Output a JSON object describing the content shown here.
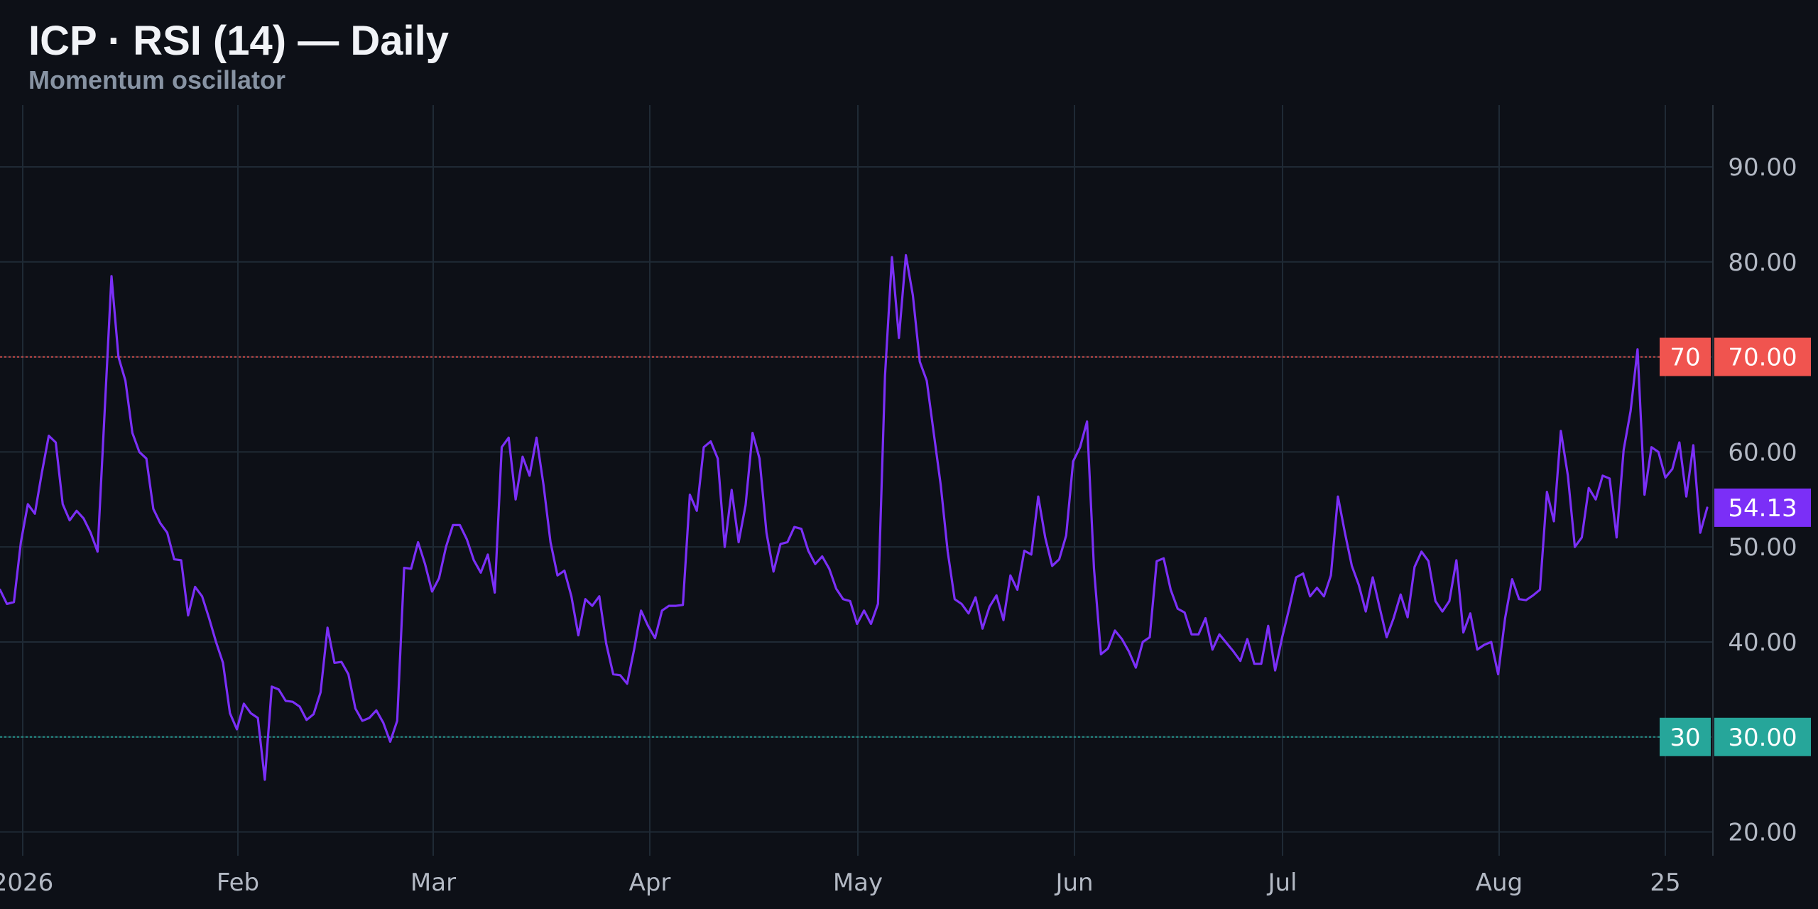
{
  "header": {
    "title": "ICP · RSI (14) — Daily",
    "subtitle": "Momentum oscillator"
  },
  "colors": {
    "background": "#0d1017",
    "grid": "#1f2a35",
    "rsi_line": "#7b2ff7",
    "overbought": "#f0544f",
    "oversold": "#26a69a",
    "current_badge": "#7b2ff7"
  },
  "chart_data": {
    "type": "line",
    "title": "ICP · RSI (14) — Daily",
    "subtitle": "Momentum oscillator",
    "ylim": [
      17.5,
      96.5
    ],
    "y_ticks": [
      "20.00",
      "30.00",
      "40.00",
      "50.00",
      "60.00",
      "70.00",
      "80.00",
      "90.00"
    ],
    "x_ticks": [
      "2026",
      "Feb",
      "Mar",
      "Apr",
      "May",
      "Jun",
      "Jul",
      "Aug",
      "25"
    ],
    "grid": true,
    "levels": [
      {
        "value": 70,
        "label": "70",
        "axis_label": "70.00"
      },
      {
        "value": 30,
        "label": "30",
        "axis_label": "30.00"
      }
    ],
    "last_value_label": "54.13",
    "series": [
      {
        "values": [
          45.5,
          44,
          44.2,
          50.5,
          54.5,
          53.5,
          57.8,
          61.7,
          61,
          54.5,
          52.8,
          53.8,
          53,
          51.5,
          49.5,
          64,
          78.5,
          70,
          67.5,
          62,
          60,
          59.3,
          54,
          52.5,
          51.5,
          48.7,
          48.6,
          42.8,
          45.8,
          44.8,
          42.5,
          40,
          37.8,
          32.5,
          30.8,
          33.5,
          32.5,
          32,
          25.5,
          35.3,
          35,
          33.8,
          33.7,
          33.2,
          31.8,
          32.4,
          34.7,
          41.5,
          37.8,
          37.9,
          36.6,
          33,
          31.7,
          32,
          32.8,
          31.5,
          29.5,
          31.7,
          47.8,
          47.7,
          50.5,
          48.2,
          45.3,
          46.7,
          50,
          52.3,
          52.3,
          50.8,
          48.6,
          47.3,
          49.2,
          45.2,
          60.5,
          61.5,
          55,
          59.5,
          57.5,
          61.5,
          56.5,
          50.5,
          47,
          47.5,
          44.8,
          40.7,
          44.5,
          43.8,
          44.8,
          39.8,
          36.6,
          36.5,
          35.6,
          39.2,
          43.3,
          41.7,
          40.4,
          43.3,
          43.8,
          43.8,
          43.9,
          55.5,
          53.8,
          60.5,
          61.1,
          59.3,
          50,
          56,
          50.5,
          54.4,
          62,
          59.3,
          51.5,
          47.4,
          50.3,
          50.5,
          52.1,
          51.9,
          49.6,
          48.2,
          49,
          47.7,
          45.6,
          44.5,
          44.3,
          41.9,
          43.3,
          41.9,
          44,
          68,
          80.5,
          72,
          80.7,
          76.5,
          69.5,
          67.5,
          62,
          56.5,
          49.5,
          44.5,
          44,
          43,
          44.7,
          41.4,
          43.7,
          44.9,
          42.3,
          47,
          45.5,
          49.6,
          49.2,
          55.3,
          51,
          48,
          48.7,
          51.2,
          59,
          60.5,
          63.2,
          47.7,
          38.7,
          39.3,
          41.2,
          40.3,
          39,
          37.3,
          40,
          40.5,
          48.5,
          48.8,
          45.5,
          43.5,
          43.1,
          40.8,
          40.8,
          42.5,
          39.2,
          40.8,
          39.9,
          39,
          38,
          40.3,
          37.7,
          37.7,
          41.7,
          37,
          40.5,
          43.5,
          46.8,
          47.2,
          44.8,
          45.7,
          44.8,
          47,
          55.3,
          51.5,
          48,
          46,
          43.2,
          46.8,
          43.6,
          40.5,
          42.5,
          45,
          42.6,
          47.9,
          49.5,
          48.5,
          44.3,
          43.2,
          44.3,
          48.6,
          41,
          43,
          39.2,
          39.7,
          40,
          36.6,
          42.5,
          46.6,
          44.5,
          44.4,
          44.9,
          45.5,
          55.8,
          52.7,
          62.2,
          57.5,
          50,
          51,
          56.2,
          55,
          57.5,
          57.2,
          51,
          60.2,
          64.3,
          70.8,
          55.5,
          60.5,
          60,
          57.3,
          58.2,
          61,
          55.3,
          60.7,
          51.5,
          54.13
        ]
      }
    ]
  }
}
